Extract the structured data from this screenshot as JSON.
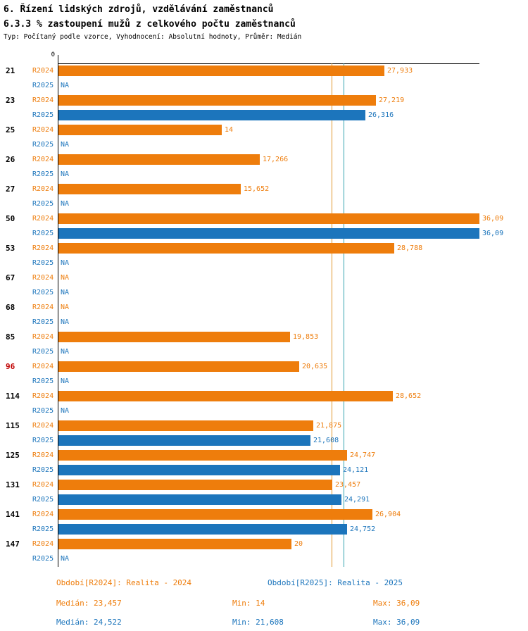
{
  "title": {
    "line1": "6. Řízení lidských zdrojů, vzdělávání zaměstnanců",
    "line2": "6.3.3 % zastoupení mužů z celkového počtu zaměstnanců",
    "meta": "Typ: Počítaný podle vzorce, Vyhodnocení: Absolutní hodnoty, Průměr: Medián"
  },
  "chart_data": {
    "type": "bar",
    "orientation": "horizontal",
    "xlim": [
      0,
      36.09
    ],
    "origin_label": "0",
    "na_label": "NA",
    "grid": false,
    "colors": {
      "r2024": "#EE7D0C",
      "r2025": "#1C75BC",
      "highlight_id": "#C00000",
      "axis": "#000000"
    },
    "series": [
      {
        "key": "r2024",
        "name": "R2024",
        "legend": "Období[R2024]: Realita - 2024",
        "median_value": 23.457,
        "median_line_color": "#E0962B",
        "stats": {
          "median": "Medián: 23,457",
          "min": "Min: 14",
          "max": "Max: 36,09"
        }
      },
      {
        "key": "r2025",
        "name": "R2025",
        "legend": "Období[R2025]: Realita - 2025",
        "median_value": 24.522,
        "median_line_color": "#35A3B0",
        "stats": {
          "median": "Medián: 24,522",
          "min": "Min: 21,608",
          "max": "Max: 36,09"
        }
      }
    ],
    "rows": [
      {
        "id": "21",
        "values": [
          27.933,
          null
        ],
        "labels": [
          "27,933",
          "NA"
        ]
      },
      {
        "id": "23",
        "values": [
          27.219,
          26.316
        ],
        "labels": [
          "27,219",
          "26,316"
        ]
      },
      {
        "id": "25",
        "values": [
          14,
          null
        ],
        "labels": [
          "14",
          "NA"
        ]
      },
      {
        "id": "26",
        "values": [
          17.266,
          null
        ],
        "labels": [
          "17,266",
          "NA"
        ]
      },
      {
        "id": "27",
        "values": [
          15.652,
          null
        ],
        "labels": [
          "15,652",
          "NA"
        ]
      },
      {
        "id": "50",
        "values": [
          36.09,
          36.09
        ],
        "labels": [
          "36,09",
          "36,09"
        ]
      },
      {
        "id": "53",
        "values": [
          28.788,
          null
        ],
        "labels": [
          "28,788",
          "NA"
        ]
      },
      {
        "id": "67",
        "values": [
          null,
          null
        ],
        "labels": [
          "NA",
          "NA"
        ]
      },
      {
        "id": "68",
        "values": [
          null,
          null
        ],
        "labels": [
          "NA",
          "NA"
        ]
      },
      {
        "id": "85",
        "values": [
          19.853,
          null
        ],
        "labels": [
          "19,853",
          "NA"
        ]
      },
      {
        "id": "96",
        "highlight": true,
        "values": [
          20.635,
          null
        ],
        "labels": [
          "20,635",
          "NA"
        ]
      },
      {
        "id": "114",
        "values": [
          28.652,
          null
        ],
        "labels": [
          "28,652",
          "NA"
        ]
      },
      {
        "id": "115",
        "values": [
          21.875,
          21.608
        ],
        "labels": [
          "21,875",
          "21,608"
        ]
      },
      {
        "id": "125",
        "values": [
          24.747,
          24.121
        ],
        "labels": [
          "24,747",
          "24,121"
        ]
      },
      {
        "id": "131",
        "values": [
          23.457,
          24.291
        ],
        "labels": [
          "23,457",
          "24,291"
        ]
      },
      {
        "id": "141",
        "values": [
          26.904,
          24.752
        ],
        "labels": [
          "26,904",
          "24,752"
        ]
      },
      {
        "id": "147",
        "values": [
          20,
          null
        ],
        "labels": [
          "20",
          "NA"
        ]
      }
    ]
  }
}
